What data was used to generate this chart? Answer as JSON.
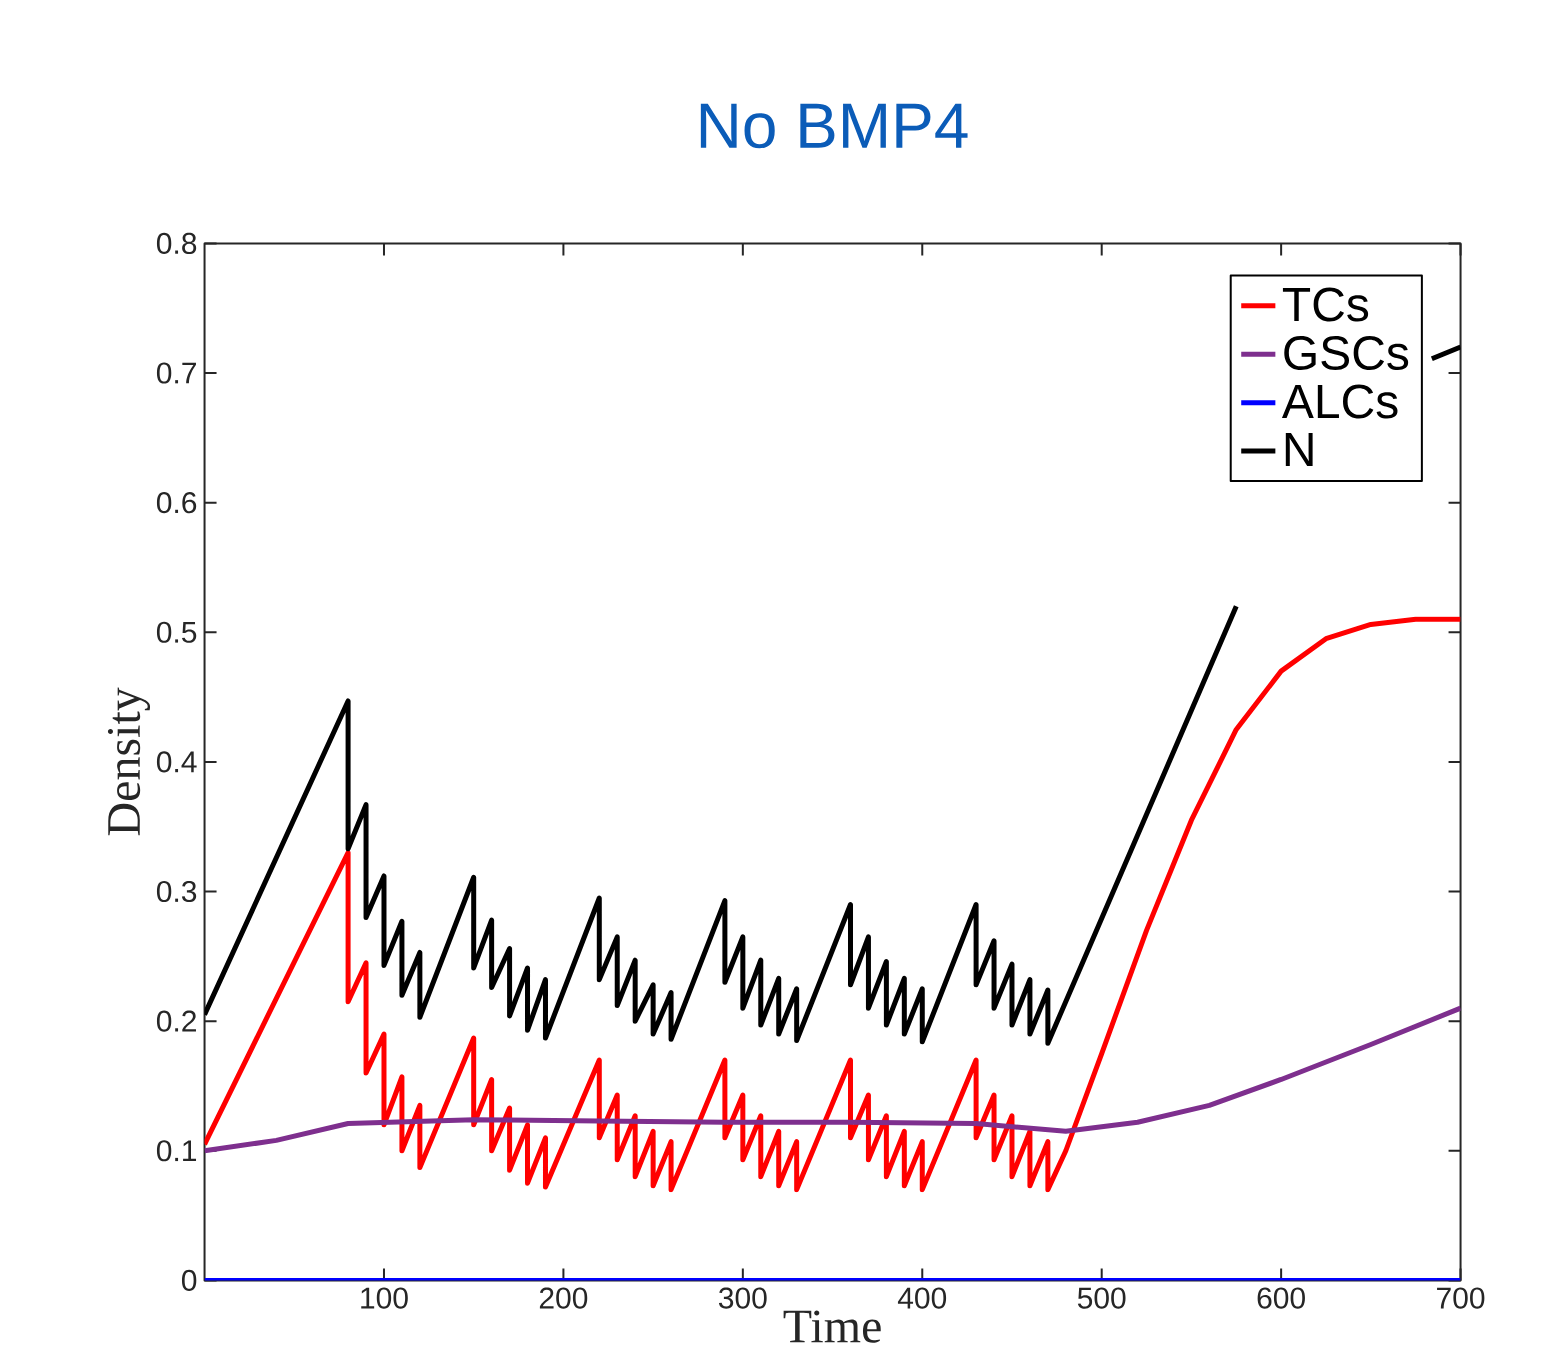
{
  "chart_data": {
    "type": "line",
    "title": "No BMP4",
    "xlabel": "Time",
    "ylabel": "Density",
    "xlim": [
      0,
      700
    ],
    "ylim": [
      0,
      0.8
    ],
    "xticks": [
      100,
      200,
      300,
      400,
      500,
      600,
      700
    ],
    "yticks": [
      0,
      0.1,
      0.2,
      0.3,
      0.4,
      0.5,
      0.6,
      0.7,
      0.8
    ],
    "legend": "top right",
    "series": [
      {
        "name": "TCs",
        "color": "#ff0000",
        "x": [
          0,
          80,
          80,
          90,
          90,
          100,
          100,
          110,
          110,
          120,
          120,
          150,
          150,
          160,
          160,
          170,
          170,
          180,
          180,
          190,
          190,
          220,
          220,
          230,
          230,
          240,
          240,
          250,
          250,
          260,
          260,
          290,
          290,
          300,
          300,
          310,
          310,
          320,
          320,
          330,
          330,
          360,
          360,
          370,
          370,
          380,
          380,
          390,
          390,
          400,
          400,
          430,
          430,
          440,
          440,
          450,
          450,
          460,
          460,
          470,
          470,
          480,
          500,
          525,
          550,
          575,
          600,
          625,
          650,
          675,
          700
        ],
        "values": [
          0.105,
          0.33,
          0.215,
          0.245,
          0.16,
          0.19,
          0.12,
          0.157,
          0.1,
          0.135,
          0.087,
          0.187,
          0.12,
          0.155,
          0.1,
          0.133,
          0.085,
          0.12,
          0.075,
          0.11,
          0.072,
          0.17,
          0.11,
          0.143,
          0.093,
          0.127,
          0.08,
          0.115,
          0.073,
          0.107,
          0.07,
          0.17,
          0.11,
          0.143,
          0.093,
          0.127,
          0.08,
          0.115,
          0.073,
          0.107,
          0.07,
          0.17,
          0.11,
          0.143,
          0.093,
          0.127,
          0.08,
          0.115,
          0.073,
          0.107,
          0.07,
          0.17,
          0.11,
          0.143,
          0.093,
          0.127,
          0.08,
          0.115,
          0.073,
          0.107,
          0.07,
          0.1,
          0.175,
          0.27,
          0.355,
          0.425,
          0.47,
          0.495,
          0.506,
          0.51,
          0.51
        ]
      },
      {
        "name": "GSCs",
        "color": "#7e2f8e",
        "x": [
          0,
          40,
          80,
          150,
          220,
          290,
          360,
          430,
          480,
          520,
          560,
          600,
          650,
          700
        ],
        "values": [
          0.1,
          0.108,
          0.121,
          0.124,
          0.123,
          0.122,
          0.122,
          0.121,
          0.115,
          0.122,
          0.135,
          0.155,
          0.182,
          0.21
        ]
      },
      {
        "name": "ALCs",
        "color": "#0000ff",
        "x": [
          0,
          700
        ],
        "values": [
          0,
          0
        ]
      },
      {
        "name": "N",
        "color": "#000000",
        "x": [
          0,
          80,
          80,
          90,
          90,
          100,
          100,
          110,
          110,
          120,
          120,
          150,
          150,
          160,
          160,
          170,
          170,
          180,
          180,
          190,
          190,
          220,
          220,
          230,
          230,
          240,
          240,
          250,
          250,
          260,
          260,
          290,
          290,
          300,
          300,
          310,
          310,
          320,
          320,
          330,
          330,
          360,
          360,
          370,
          370,
          380,
          380,
          390,
          390,
          400,
          400,
          430,
          430,
          440,
          440,
          450,
          450,
          460,
          460,
          470,
          470,
          575,
          620,
          684,
          700
        ],
        "values": [
          0.205,
          0.447,
          0.333,
          0.367,
          0.28,
          0.312,
          0.243,
          0.277,
          0.22,
          0.253,
          0.203,
          0.311,
          0.241,
          0.278,
          0.226,
          0.256,
          0.204,
          0.241,
          0.193,
          0.232,
          0.187,
          0.295,
          0.232,
          0.265,
          0.212,
          0.247,
          0.2,
          0.228,
          0.19,
          0.222,
          0.186,
          0.293,
          0.23,
          0.265,
          0.21,
          0.247,
          0.197,
          0.233,
          0.19,
          0.225,
          0.185,
          0.29,
          0.228,
          0.265,
          0.21,
          0.246,
          0.197,
          0.233,
          0.19,
          0.225,
          0.184,
          0.29,
          0.228,
          0.262,
          0.21,
          0.244,
          0.197,
          0.232,
          0.19,
          0.224,
          0.183,
          0.52,
          null,
          0.711,
          0.72
        ]
      }
    ]
  }
}
